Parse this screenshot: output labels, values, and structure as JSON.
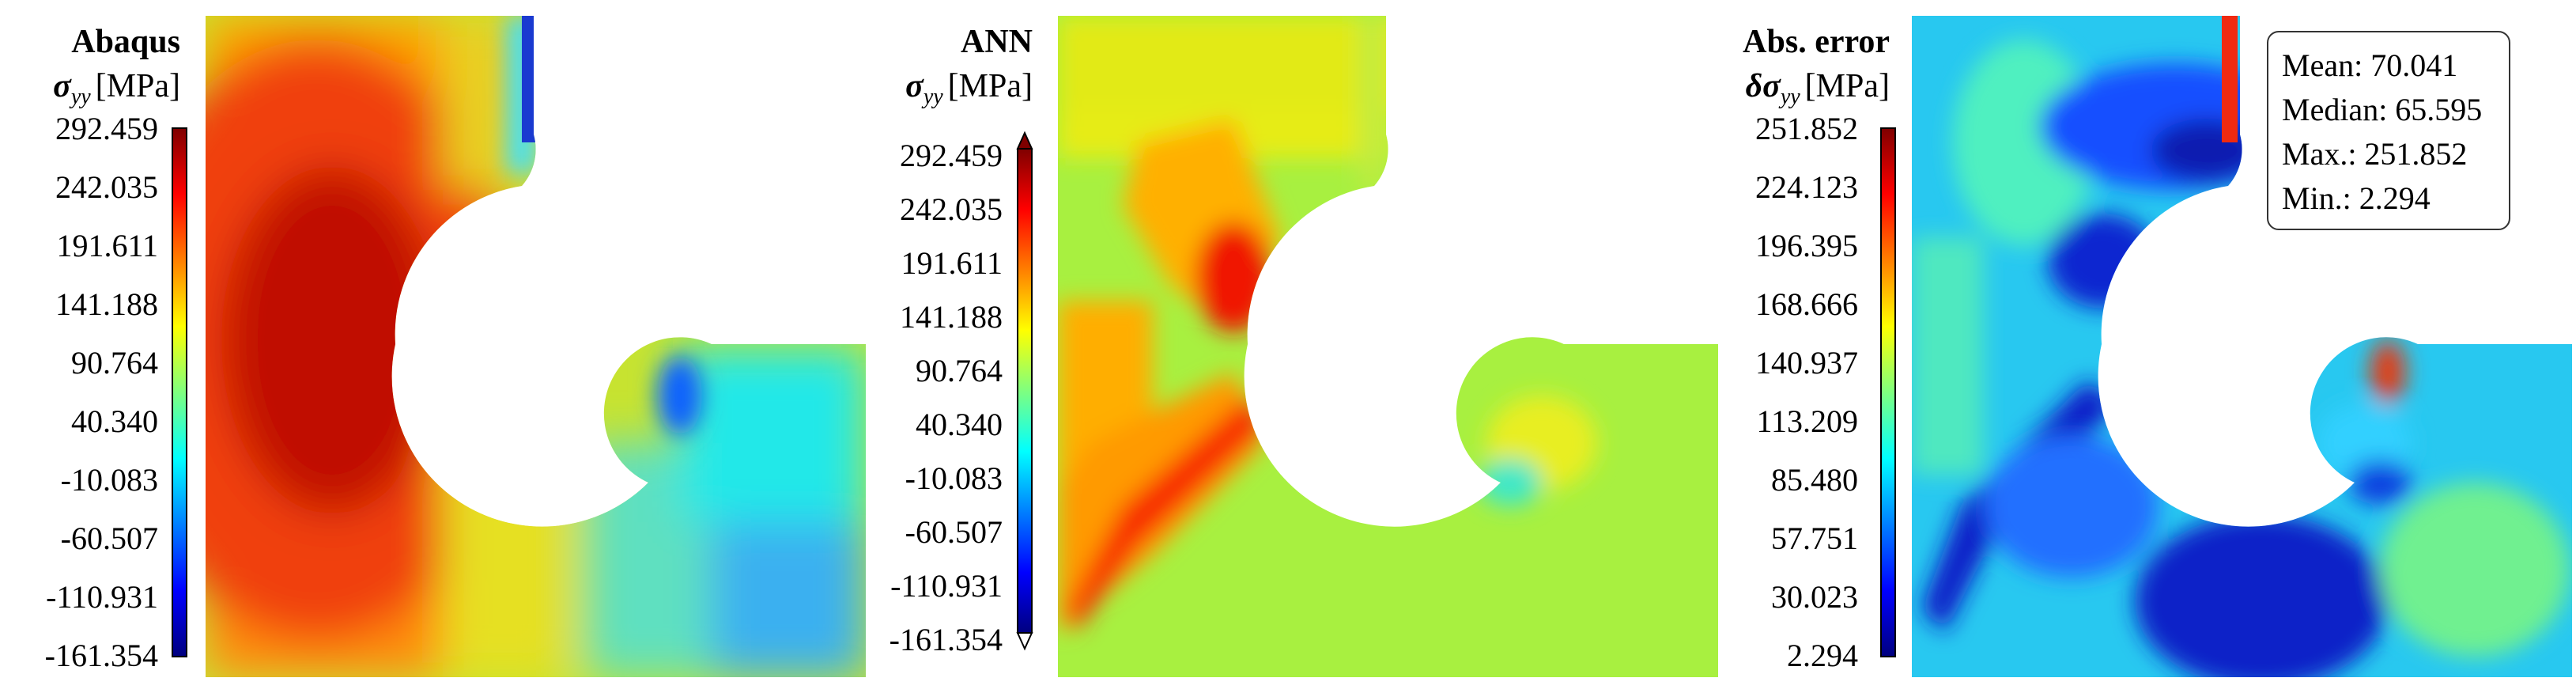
{
  "colormap": [
    "#00007f",
    "#0000ff",
    "#007fff",
    "#00ffff",
    "#7fff7f",
    "#ffff00",
    "#ff7f00",
    "#ff0000",
    "#7f0000"
  ],
  "outside_color": "#ffffff",
  "panels": [
    {
      "id": "abaqus",
      "title": "Abaqus",
      "symbol": "σ",
      "symbol_prefix": "",
      "subscript": "yy",
      "unit": "[MPa]",
      "ticks": [
        "292.459",
        "242.035",
        "191.611",
        "141.188",
        "90.764",
        "40.340",
        "-10.083",
        "-60.507",
        "-110.931",
        "-161.354"
      ],
      "extend_arrows": false
    },
    {
      "id": "ann",
      "title": "ANN",
      "symbol": "σ",
      "symbol_prefix": "",
      "subscript": "yy",
      "unit": "[MPa]",
      "ticks": [
        "292.459",
        "242.035",
        "191.611",
        "141.188",
        "90.764",
        "40.340",
        "-10.083",
        "-60.507",
        "-110.931",
        "-161.354"
      ],
      "extend_arrows": true
    },
    {
      "id": "error",
      "title": "Abs. error",
      "symbol": "σ",
      "symbol_prefix": "δ",
      "subscript": "yy",
      "unit": "[MPa]",
      "ticks": [
        "251.852",
        "224.123",
        "196.395",
        "168.666",
        "140.937",
        "113.209",
        "85.480",
        "57.751",
        "30.023",
        "2.294"
      ],
      "extend_arrows": false
    }
  ],
  "stats": {
    "mean": "Mean: 70.041",
    "median": "Median: 65.595",
    "max": "Max.: 251.852",
    "min": "Min.: 2.294"
  }
}
